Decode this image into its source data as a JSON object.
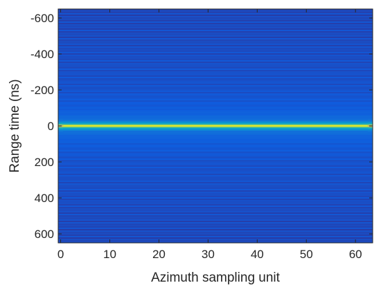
{
  "chart_data": {
    "type": "heatmap",
    "title": "",
    "xlabel": "Azimuth sampling unit",
    "ylabel": "Range time (ns)",
    "xlim": [
      -0.5,
      63.5
    ],
    "ylim": [
      -650,
      650
    ],
    "y_reversed": true,
    "colormap": "parula",
    "grid": false,
    "x_ticks": [
      0,
      10,
      20,
      30,
      40,
      50,
      60
    ],
    "x_tick_labels": [
      "0",
      "10",
      "20",
      "30",
      "40",
      "50",
      "60"
    ],
    "y_ticks": [
      -600,
      -400,
      -200,
      0,
      200,
      400,
      600
    ],
    "y_tick_labels": [
      "-600",
      "-400",
      "-200",
      "0",
      "200",
      "400",
      "600"
    ],
    "x_columns": 64,
    "range_profile": [
      {
        "range_ns": -650,
        "value": 0.06
      },
      {
        "range_ns": -200,
        "value": 0.08
      },
      {
        "range_ns": -100,
        "value": 0.1
      },
      {
        "range_ns": -60,
        "value": 0.13
      },
      {
        "range_ns": -30,
        "value": 0.2
      },
      {
        "range_ns": -15,
        "value": 0.42
      },
      {
        "range_ns": -7,
        "value": 0.72
      },
      {
        "range_ns": 0,
        "value": 0.98
      },
      {
        "range_ns": 7,
        "value": 0.72
      },
      {
        "range_ns": 15,
        "value": 0.42
      },
      {
        "range_ns": 30,
        "value": 0.2
      },
      {
        "range_ns": 60,
        "value": 0.13
      },
      {
        "range_ns": 100,
        "value": 0.1
      },
      {
        "range_ns": 200,
        "value": 0.08
      },
      {
        "range_ns": 650,
        "value": 0.06
      }
    ],
    "edge_columns": [
      0,
      63
    ],
    "edge_peak_value": 0.65
  }
}
